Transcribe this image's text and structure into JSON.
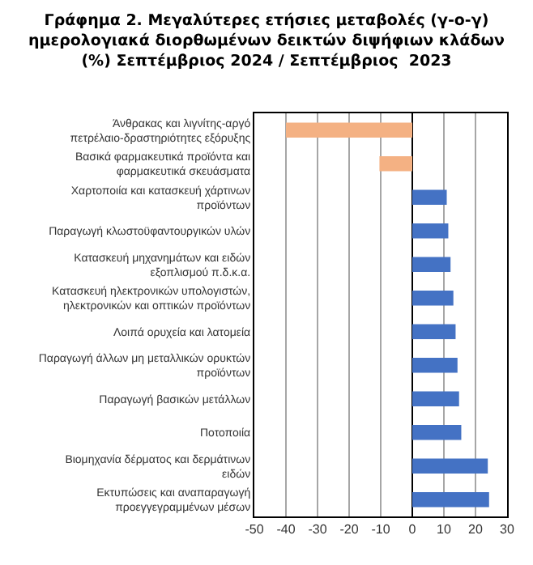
{
  "chart_data": {
    "type": "bar",
    "orientation": "horizontal",
    "title": "Γράφημα 2. Μεγαλύτερες ετήσιες μεταβολές (γ-ο-γ) ημερολογιακά διορθωμένων δεικτών διψήφιων κλάδων (%) Σεπτέμβριος 2024 / Σεπτέμβριος  2023",
    "categories": [
      "Άνθρακας και λιγνίτης-αργό πετρέλαιο-δραστηριότητες εξόρυξης",
      "Βασικά φαρμακευτικά προϊόντα και φαρμακευτικά σκευάσματα",
      "Χαρτοποιία και κατασκευή χάρτινων προϊόντων",
      "Παραγωγή κλωστοϋφαντουργικών υλών",
      "Κατασκευή μηχανημάτων και ειδών εξοπλισμού π.δ.κ.α.",
      "Κατασκευή ηλεκτρονικών υπολογιστών, ηλεκτρονικών και οπτικών προϊόντων",
      "Λοιπά ορυχεία και λατομεία",
      "Παραγωγή άλλων μη μεταλλικών ορυκτών προϊόντων",
      "Παραγωγή βασικών μετάλλων",
      "Ποτοποιία",
      "Βιομηχανία δέρματος και δερμάτινων ειδών",
      "Εκτυπώσεις και αναπαραγωγή προεγγεγραμμένων μέσων"
    ],
    "values": [
      -40,
      -10.4,
      10.9,
      11.4,
      12.1,
      13,
      13.7,
      14.3,
      14.8,
      15.5,
      23.9,
      24.3
    ],
    "colors": [
      "#f4b183",
      "#f4b183",
      "#4472c4",
      "#4472c4",
      "#4472c4",
      "#4472c4",
      "#4472c4",
      "#4472c4",
      "#4472c4",
      "#4472c4",
      "#4472c4",
      "#4472c4"
    ],
    "xlim": [
      -50,
      30
    ],
    "xticks": [
      -50,
      -40,
      -30,
      -20,
      -10,
      0,
      10,
      20,
      30
    ],
    "grid": "x"
  }
}
